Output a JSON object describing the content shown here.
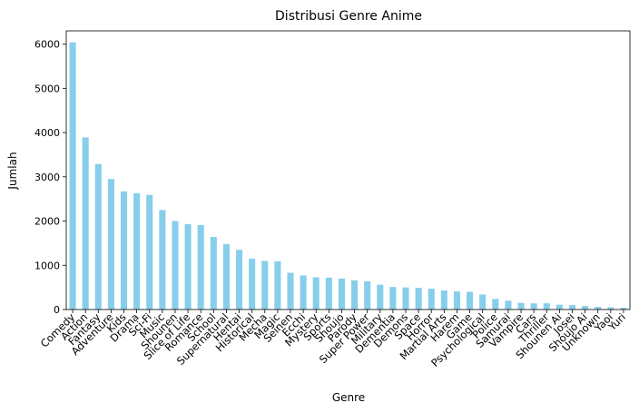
{
  "chart_data": {
    "type": "bar",
    "title": "Distribusi Genre Anime",
    "xlabel": "Genre",
    "ylabel": "Jumlah",
    "ylim": [
      0,
      6300
    ],
    "yticks": [
      0,
      1000,
      2000,
      3000,
      4000,
      5000,
      6000
    ],
    "grid": false,
    "bar_color": "#87ceeb",
    "categories": [
      "Comedy",
      "Action",
      "Fantasy",
      "Adventure",
      "Kids",
      "Drama",
      "Sci-Fi",
      "Music",
      "Shounen",
      "Slice of Life",
      "Romance",
      "School",
      "Supernatural",
      "Hentai",
      "Historical",
      "Mecha",
      "Magic",
      "Seinen",
      "Ecchi",
      "Mystery",
      "Sports",
      "Shoujo",
      "Parody",
      "Super Power",
      "Military",
      "Dementia",
      "Demons",
      "Space",
      "Horror",
      "Martial Arts",
      "Harem",
      "Game",
      "Psychological",
      "Police",
      "Samurai",
      "Vampire",
      "Cars",
      "Thriller",
      "Shounen Ai",
      "Josei",
      "Shoujo Ai",
      "Unknown",
      "Yaoi",
      "Yuri"
    ],
    "values": [
      6040,
      3890,
      3290,
      2950,
      2670,
      2630,
      2590,
      2250,
      2000,
      1930,
      1910,
      1640,
      1480,
      1350,
      1150,
      1100,
      1090,
      830,
      770,
      730,
      720,
      700,
      660,
      640,
      560,
      510,
      500,
      490,
      470,
      430,
      410,
      400,
      340,
      240,
      200,
      150,
      140,
      140,
      110,
      100,
      80,
      60,
      50,
      40
    ]
  }
}
